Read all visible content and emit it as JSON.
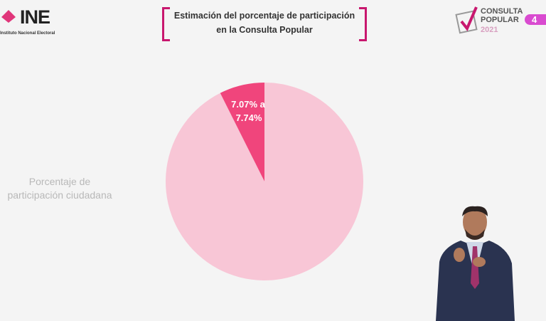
{
  "header": {
    "logo_text": "INE",
    "logo_subtitle": "Instituto Nacional Electoral",
    "title_line1": "Estimación del porcentaje de participación",
    "title_line2": "en la Consulta Popular",
    "badge_logo_text": "CONSULTA POPULAR",
    "badge_year": "2021",
    "channel_number": "4"
  },
  "colors": {
    "accent": "#c8176e",
    "pie_main": "#f8c6d6",
    "pie_slice": "#f0457c",
    "label": "#b8b8b8"
  },
  "chart_data": {
    "type": "pie",
    "title": "Estimación del porcentaje de participación en la Consulta Popular",
    "category_label": "Porcentaje de participación ciudadana",
    "slices": [
      {
        "label": "7.07% a 7.74%",
        "value": 7.4,
        "color": "#f0457c"
      },
      {
        "label": "",
        "value": 92.6,
        "color": "#f8c6d6"
      }
    ],
    "slice_label_line1": "7.07% a",
    "slice_label_line2": "7.74%"
  },
  "side_label_line1": "Porcentaje de",
  "side_label_line2": "participación ciudadana"
}
